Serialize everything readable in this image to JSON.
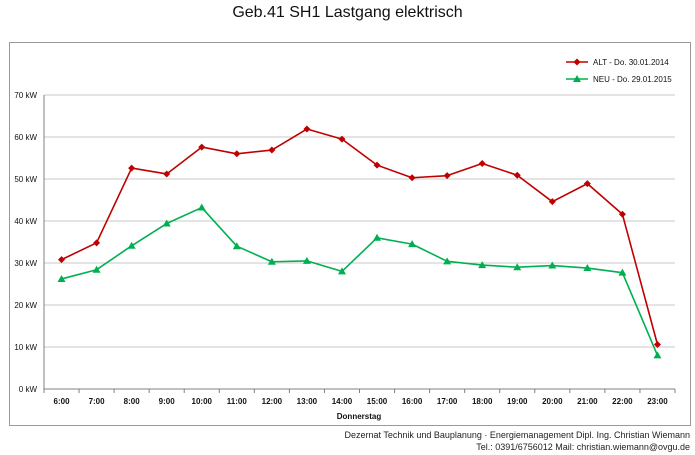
{
  "chart_data": {
    "type": "line",
    "title": "Geb.41 SH1 Lastgang elektrisch",
    "xlabel": "Donnerstag",
    "ylabel": "",
    "categories": [
      "6:00",
      "7:00",
      "8:00",
      "9:00",
      "10:00",
      "11:00",
      "12:00",
      "13:00",
      "14:00",
      "15:00",
      "16:00",
      "17:00",
      "18:00",
      "19:00",
      "20:00",
      "21:00",
      "22:00",
      "23:00"
    ],
    "y_ticks": [
      "0 kW",
      "10 kW",
      "20 kW",
      "30 kW",
      "40 kW",
      "50 kW",
      "60 kW",
      "70 kW"
    ],
    "ylim": [
      0,
      70
    ],
    "grid": true,
    "legend_position": "top-right",
    "series": [
      {
        "name": "ALT  - Do. 30.01.2014",
        "color": "#c00000",
        "marker": "diamond",
        "values": [
          30.8,
          34.8,
          52.6,
          51.2,
          57.6,
          56.0,
          56.9,
          61.9,
          59.5,
          53.3,
          50.3,
          50.8,
          53.7,
          50.9,
          44.6,
          48.9,
          41.6,
          10.6
        ]
      },
      {
        "name": "NEU - Do. 29.01.2015",
        "color": "#00b050",
        "marker": "triangle",
        "values": [
          26.2,
          28.4,
          34.1,
          39.4,
          43.2,
          34.0,
          30.3,
          30.5,
          28.0,
          36.0,
          34.5,
          30.4,
          29.5,
          29.0,
          29.4,
          28.8,
          27.7,
          8.0
        ]
      }
    ]
  },
  "footer": {
    "line1": "Dezernat Technik und Bauplanung · Energiemanagement Dipl. Ing. Christian Wiemann",
    "line2": "Tel.: 0391/6756012 Mail: christian.wiemann@ovgu.de"
  }
}
